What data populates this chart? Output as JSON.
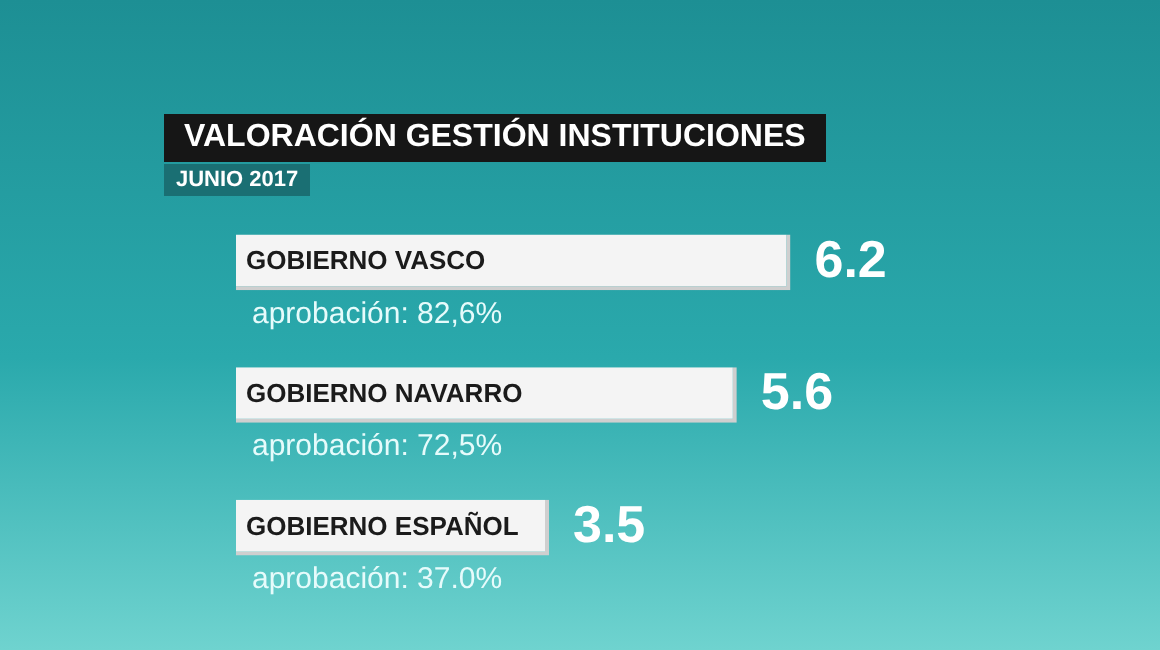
{
  "chart_data": {
    "type": "bar",
    "orientation": "horizontal",
    "title": "VALORACIÓN GESTIÓN INSTITUCIONES",
    "subtitle": "JUNIO 2017",
    "categories": [
      "GOBIERNO VASCO",
      "GOBIERNO NAVARRO",
      "GOBIERNO ESPAÑOL"
    ],
    "values": [
      6.2,
      5.6,
      3.5
    ],
    "color": "#f4f4f4",
    "data_labels": true,
    "legend": false,
    "annotations": [
      "aprobación: 82,6%",
      "aprobación: 72,5%",
      "aprobación: 37.0%"
    ]
  }
}
